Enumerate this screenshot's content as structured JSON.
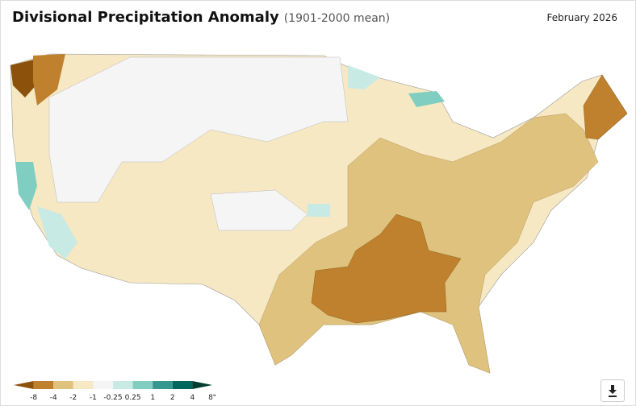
{
  "header": {
    "title": "Divisional Precipitation Anomaly",
    "subtitle": "(1901-2000 mean)",
    "date": "February 2026"
  },
  "legend": {
    "colors": [
      "#8c510a",
      "#bf812d",
      "#dfc27d",
      "#f6e8c3",
      "#f5f5f5",
      "#c7eae5",
      "#80cdc1",
      "#35978f",
      "#01665e",
      "#003c30"
    ],
    "labels": [
      "-8",
      "-4",
      "-2",
      "-1",
      "-0.25",
      "0.25",
      "1",
      "2",
      "4",
      "8\""
    ]
  }
}
